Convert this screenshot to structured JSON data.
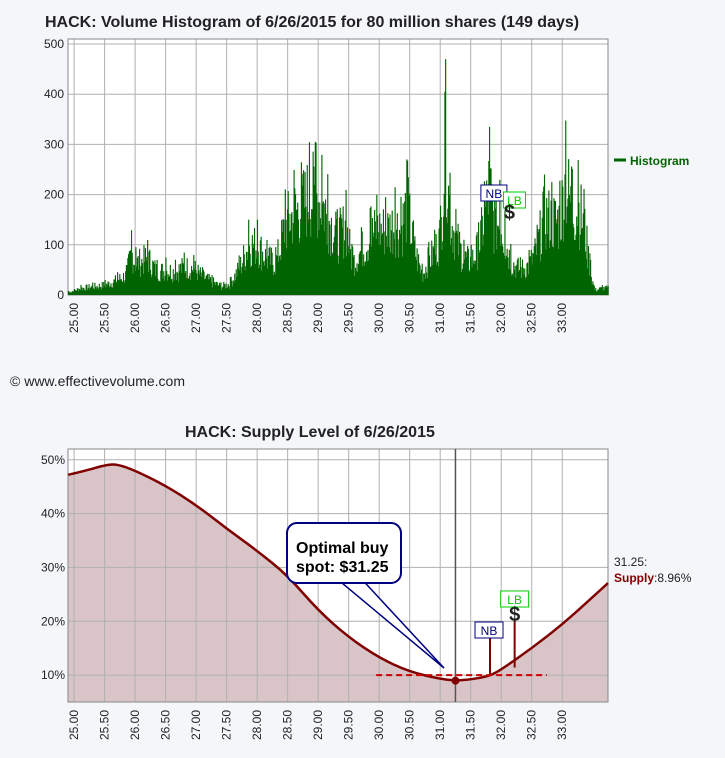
{
  "copyright": "© www.effectivevolume.com",
  "colors": {
    "histogram": "#006400",
    "supply_line": "#800000",
    "supply_fill": "#d9c5c8",
    "nb": "#000080",
    "lb": "#00cc00",
    "dashed": "#cc0000"
  },
  "chart_data": [
    {
      "type": "bar",
      "title": "HACK: Volume Histogram of 6/26/2015 for 80 million shares (149 days)",
      "legend": [
        "Histogram"
      ],
      "legend_position": "right",
      "grid": true,
      "xlim": [
        24.9,
        33.75
      ],
      "ylim": [
        0,
        510
      ],
      "xticks": [
        "25.00",
        "25.50",
        "26.00",
        "26.50",
        "27.00",
        "27.50",
        "28.00",
        "28.50",
        "29.00",
        "29.50",
        "30.00",
        "30.50",
        "31.00",
        "31.50",
        "32.00",
        "32.50",
        "33.00"
      ],
      "yticks": [
        "0",
        "100",
        "200",
        "300",
        "400",
        "500"
      ],
      "series": [
        {
          "name": "Histogram",
          "peaks": [
            [
              24.9,
              8
            ],
            [
              25.1,
              20
            ],
            [
              25.3,
              25
            ],
            [
              25.5,
              30
            ],
            [
              25.7,
              45
            ],
            [
              25.85,
              60
            ],
            [
              25.93,
              130
            ],
            [
              26.0,
              95
            ],
            [
              26.2,
              110
            ],
            [
              26.35,
              70
            ],
            [
              26.5,
              75
            ],
            [
              26.65,
              70
            ],
            [
              26.8,
              85
            ],
            [
              26.95,
              80
            ],
            [
              27.1,
              55
            ],
            [
              27.25,
              40
            ],
            [
              27.4,
              25
            ],
            [
              27.55,
              35
            ],
            [
              27.7,
              80
            ],
            [
              27.85,
              150
            ],
            [
              28.0,
              150
            ],
            [
              28.15,
              110
            ],
            [
              28.3,
              95
            ],
            [
              28.45,
              210
            ],
            [
              28.6,
              250
            ],
            [
              28.72,
              265
            ],
            [
              28.85,
              305
            ],
            [
              28.95,
              305
            ],
            [
              29.05,
              280
            ],
            [
              29.15,
              240
            ],
            [
              29.3,
              170
            ],
            [
              29.45,
              210
            ],
            [
              29.55,
              95
            ],
            [
              29.7,
              135
            ],
            [
              29.85,
              175
            ],
            [
              29.95,
              200
            ],
            [
              30.1,
              195
            ],
            [
              30.25,
              215
            ],
            [
              30.35,
              195
            ],
            [
              30.45,
              275
            ],
            [
              30.55,
              150
            ],
            [
              30.7,
              60
            ],
            [
              30.8,
              105
            ],
            [
              30.9,
              130
            ],
            [
              31.0,
              180
            ],
            [
              31.08,
              470
            ],
            [
              31.15,
              245
            ],
            [
              31.25,
              170
            ],
            [
              31.38,
              110
            ],
            [
              31.5,
              100
            ],
            [
              31.62,
              145
            ],
            [
              31.72,
              230
            ],
            [
              31.8,
              335
            ],
            [
              31.88,
              205
            ],
            [
              31.97,
              230
            ],
            [
              32.05,
              170
            ],
            [
              32.15,
              100
            ],
            [
              32.3,
              75
            ],
            [
              32.45,
              90
            ],
            [
              32.58,
              140
            ],
            [
              32.7,
              240
            ],
            [
              32.82,
              225
            ],
            [
              32.95,
              225
            ],
            [
              33.05,
              350
            ],
            [
              33.15,
              250
            ],
            [
              33.25,
              270
            ],
            [
              33.35,
              210
            ],
            [
              33.45,
              75
            ],
            [
              33.52,
              15
            ],
            [
              33.65,
              20
            ]
          ]
        }
      ],
      "annotations": {
        "nb_label": "NB",
        "lb_label": "LB",
        "dollar": "$",
        "nb_x": 31.88,
        "lb_x": 32.2
      }
    },
    {
      "type": "area",
      "title": "HACK: Supply Level of 6/26/2015",
      "grid": true,
      "xlim": [
        24.9,
        33.75
      ],
      "ylim": [
        5,
        52
      ],
      "xticks": [
        "25.00",
        "25.50",
        "26.00",
        "26.50",
        "27.00",
        "27.50",
        "28.00",
        "28.50",
        "29.00",
        "29.50",
        "30.00",
        "30.50",
        "31.00",
        "31.50",
        "32.00",
        "32.50",
        "33.00"
      ],
      "yticks": [
        "10%",
        "20%",
        "30%",
        "40%",
        "50%"
      ],
      "series": [
        {
          "name": "Supply",
          "x": [
            24.9,
            25.2,
            25.5,
            25.7,
            26.0,
            26.5,
            27.0,
            27.5,
            28.0,
            28.5,
            29.0,
            29.5,
            30.0,
            30.5,
            31.0,
            31.25,
            31.5,
            31.8,
            32.0,
            32.5,
            33.0,
            33.5,
            33.75
          ],
          "y": [
            47.2,
            48.0,
            49.0,
            49.2,
            48.0,
            45.2,
            41.6,
            37.2,
            33.1,
            28.5,
            22.0,
            17.0,
            13.2,
            10.6,
            9.3,
            8.96,
            9.2,
            9.8,
            11.0,
            15.0,
            19.4,
            24.5,
            27.1
          ]
        }
      ],
      "optimal": {
        "x": 31.25,
        "y": 8.96
      },
      "callout": {
        "line1": "Optimal buy",
        "line2": "spot: $31.25"
      },
      "readout": {
        "price": "31.25:",
        "label": "Supply",
        "value": ":8.96%"
      },
      "dashed_level": {
        "x_start": 29.95,
        "x_end": 32.75,
        "y": 10.0
      },
      "annotations": {
        "nb_label": "NB",
        "lb_label": "LB",
        "dollar": "$",
        "nb_x": 31.8,
        "lb_x": 32.22
      }
    }
  ]
}
